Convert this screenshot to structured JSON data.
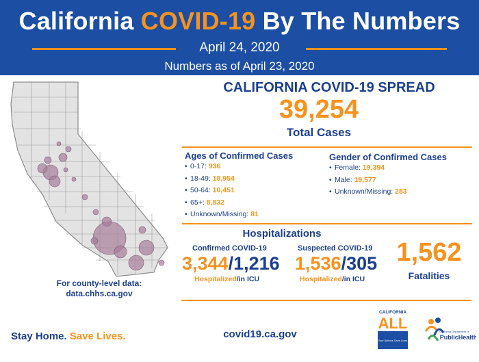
{
  "header": {
    "title_part1": "California ",
    "title_highlight": "COVID-19",
    "title_part2": " By The Numbers",
    "date": "April 24, 2020",
    "as_of": "Numbers as of April 23, 2020"
  },
  "spread": {
    "title": "CALIFORNIA COVID-19 SPREAD",
    "total_cases": "39,254",
    "total_label": "Total Cases"
  },
  "ages": {
    "title": "Ages of Confirmed Cases",
    "items": [
      {
        "label": "0-17: ",
        "value": "936"
      },
      {
        "label": "18-49: ",
        "value": "18,954"
      },
      {
        "label": "50-64: ",
        "value": "10,451"
      },
      {
        "label": "65+: ",
        "value": "8,832"
      },
      {
        "label": "Unknown/Missing: ",
        "value": "81"
      }
    ]
  },
  "gender": {
    "title": "Gender of Confirmed Cases",
    "items": [
      {
        "label": "Female: ",
        "value": "19,394"
      },
      {
        "label": "Male: ",
        "value": "19,577"
      },
      {
        "label": "Unknown/Missing: ",
        "value": "283"
      }
    ]
  },
  "hospitalizations": {
    "title": "Hospitalizations",
    "confirmed": {
      "label": "Confirmed COVID-19",
      "hospitalized": "3,344",
      "separator": "/",
      "icu": "1,216",
      "sub_hospitalized": "Hospitalized",
      "sub_icu": "/in ICU"
    },
    "suspected": {
      "label": "Suspected COVID-19",
      "hospitalized": "1,536",
      "separator": "/",
      "icu": "305",
      "sub_hospitalized": "Hospitalized",
      "sub_icu": "/in ICU"
    }
  },
  "fatalities": {
    "number": "1,562",
    "label": "Fatalities"
  },
  "county_note": {
    "line1": "For county-level data:",
    "line2": "data.chhs.ca.gov"
  },
  "footer": {
    "slogan_part1": "Stay Home. ",
    "slogan_part2": "Save Lives.",
    "url": "covid19.ca.gov"
  },
  "logos": {
    "ca_all_top": "CALIFORNIA",
    "ca_all_main": "ALL",
    "ca_all_tagline": "Your Actions Save Lives",
    "public_health_small": "California Department of",
    "public_health_main": "PublicHealth"
  },
  "colors": {
    "navy": "#1c4fa3",
    "orange": "#f6921e",
    "text_blue": "#1b3f8f",
    "bubble": "#a67d9a"
  }
}
